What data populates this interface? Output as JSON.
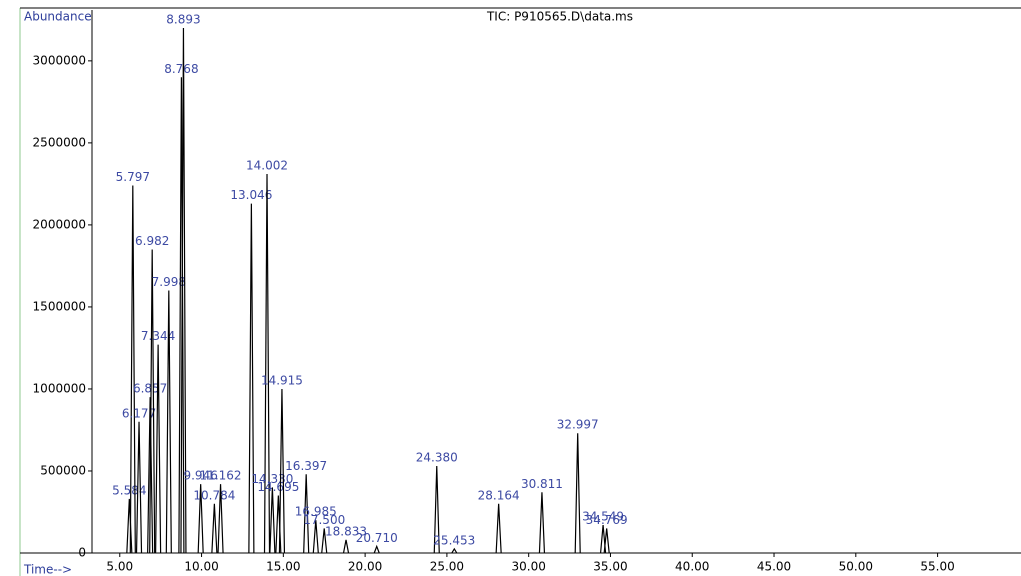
{
  "chart_data": {
    "type": "chromatogram",
    "title": "TIC: P910565.D\\data.ms",
    "y_label": "Abundance",
    "x_label": "Time-->",
    "x": [
      5.584,
      5.797,
      6.177,
      6.857,
      6.982,
      7.344,
      7.998,
      8.768,
      8.893,
      9.946,
      10.784,
      11.162,
      13.046,
      14.002,
      14.33,
      14.695,
      14.915,
      16.397,
      16.985,
      17.5,
      18.833,
      20.71,
      24.38,
      25.453,
      28.164,
      30.811,
      32.997,
      34.549,
      34.769
    ],
    "peak_labels": [
      "5.584",
      "5.797",
      "6.177",
      "6.857",
      "6.982",
      "7.344",
      "7.998",
      "8.768",
      "8.893",
      "9.946",
      "10.784",
      "11.162",
      "13.046",
      "14.002",
      "14.330",
      "14.695",
      "14.915",
      "16.397",
      "16.985",
      "17.500",
      "18.833",
      "20.710",
      "24.380",
      "25.453",
      "28.164",
      "30.811",
      "32.997",
      "34.549",
      "34.769"
    ],
    "values": [
      330000,
      2240000,
      800000,
      950000,
      1850000,
      1270000,
      1600000,
      2900000,
      3200000,
      420000,
      300000,
      420000,
      2130000,
      2310000,
      400000,
      350000,
      1000000,
      480000,
      200000,
      150000,
      80000,
      40000,
      530000,
      25000,
      300000,
      370000,
      730000,
      170000,
      150000
    ],
    "color": "#000000",
    "label_color": "#3d4aa3",
    "xlim": [
      -1.1,
      60.1
    ],
    "ylim": [
      0,
      3310000
    ],
    "xticks": [
      {
        "value": 5,
        "label": "5.00"
      },
      {
        "value": 10,
        "label": "10.00"
      },
      {
        "value": 15,
        "label": "15.00"
      },
      {
        "value": 20,
        "label": "20.00"
      },
      {
        "value": 25,
        "label": "25.00"
      },
      {
        "value": 30,
        "label": "30.00"
      },
      {
        "value": 35,
        "label": "35.00"
      },
      {
        "value": 40,
        "label": "40.00"
      },
      {
        "value": 45,
        "label": "45.00"
      },
      {
        "value": 50,
        "label": "50.00"
      },
      {
        "value": 55,
        "label": "55.00"
      }
    ],
    "yticks": [
      0,
      500000,
      1000000,
      1500000,
      2000000,
      2500000,
      3000000
    ]
  }
}
